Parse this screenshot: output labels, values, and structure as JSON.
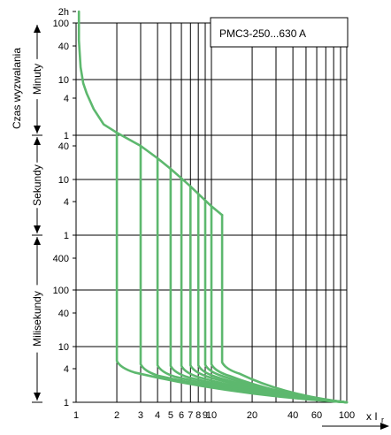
{
  "chart_data": {
    "type": "line",
    "title": "",
    "legend_text": "PMC3-250...630 A",
    "xlabel": "x I",
    "xlabel_sub": "r",
    "ylabel": "Czas wyzwalania",
    "x_scale": "log",
    "y_scale": "log",
    "xlim": [
      1,
      100
    ],
    "x_ticks": [
      {
        "v": 1,
        "label": "1"
      },
      {
        "v": 2,
        "label": "2"
      },
      {
        "v": 3,
        "label": "3"
      },
      {
        "v": 4,
        "label": "4"
      },
      {
        "v": 5,
        "label": "5"
      },
      {
        "v": 6,
        "label": "6"
      },
      {
        "v": 7,
        "label": "7"
      },
      {
        "v": 8,
        "label": "8"
      },
      {
        "v": 9,
        "label": "9"
      },
      {
        "v": 10,
        "label": "10"
      },
      {
        "v": 20,
        "label": "20"
      },
      {
        "v": 40,
        "label": "40"
      },
      {
        "v": 60,
        "label": "60"
      },
      {
        "v": 100,
        "label": "100"
      }
    ],
    "x_grid": [
      2,
      3,
      4,
      5,
      6,
      7,
      8,
      9,
      10,
      20,
      30,
      40,
      50,
      60,
      70,
      80,
      90
    ],
    "y_ticks": [
      {
        "s": 7200,
        "label": "2h"
      },
      {
        "s": 6000,
        "label": "100"
      },
      {
        "s": 2400,
        "label": "40"
      },
      {
        "s": 600,
        "label": "10"
      },
      {
        "s": 240,
        "label": "4"
      },
      {
        "s": 60,
        "label": "1"
      },
      {
        "s": 40,
        "label": "40"
      },
      {
        "s": 10,
        "label": "10"
      },
      {
        "s": 4,
        "label": "4"
      },
      {
        "s": 1,
        "label": "1"
      },
      {
        "s": 0.4,
        "label": "400"
      },
      {
        "s": 0.1,
        "label": "100"
      },
      {
        "s": 0.04,
        "label": "40"
      },
      {
        "s": 0.01,
        "label": "10"
      },
      {
        "s": 0.004,
        "label": "4"
      },
      {
        "s": 0.001,
        "label": "1"
      }
    ],
    "y_grid": [
      6000,
      600,
      60,
      10,
      1,
      0.1,
      0.01,
      0.001
    ],
    "unit_bands": [
      {
        "label": "Minuty",
        "from": 6000,
        "to": 60
      },
      {
        "label": "Sekundy",
        "from": 60,
        "to": 1
      },
      {
        "label": "Milisekundy",
        "from": 1,
        "to": 0.001
      }
    ],
    "thermal_curve": {
      "x": [
        1.05,
        1.05,
        1.08,
        1.13,
        1.2,
        1.35,
        1.6,
        2.0
      ],
      "y_s": [
        7200,
        3000,
        1000,
        500,
        300,
        160,
        90,
        66
      ]
    },
    "overload_line": {
      "x": [
        2.0,
        3.0,
        4.0,
        5.0,
        6.0,
        7.0,
        8.0,
        9.0,
        10.0,
        12.0
      ],
      "y_s": [
        66,
        40,
        24,
        15.5,
        10.5,
        7.5,
        5.5,
        4.2,
        3.3,
        2.3
      ]
    },
    "series": [
      {
        "ir": 2,
        "knee_s": 66,
        "foot_s": 0.0055
      },
      {
        "ir": 3,
        "knee_s": 40,
        "foot_s": 0.0048
      },
      {
        "ir": 4,
        "knee_s": 24,
        "foot_s": 0.0046
      },
      {
        "ir": 5,
        "knee_s": 15.5,
        "foot_s": 0.0045
      },
      {
        "ir": 6,
        "knee_s": 10.5,
        "foot_s": 0.0045
      },
      {
        "ir": 7,
        "knee_s": 7.5,
        "foot_s": 0.0046
      },
      {
        "ir": 8,
        "knee_s": 5.5,
        "foot_s": 0.0046
      },
      {
        "ir": 9,
        "knee_s": 4.2,
        "foot_s": 0.0047
      },
      {
        "ir": 10,
        "knee_s": 3.3,
        "foot_s": 0.0048
      },
      {
        "ir": 12,
        "knee_s": 2.3,
        "foot_s": 0.0052
      }
    ],
    "end_point": {
      "x": 100,
      "y_s": 0.001
    },
    "colors": {
      "curve": "#5db86e",
      "grid": "#000000"
    }
  }
}
